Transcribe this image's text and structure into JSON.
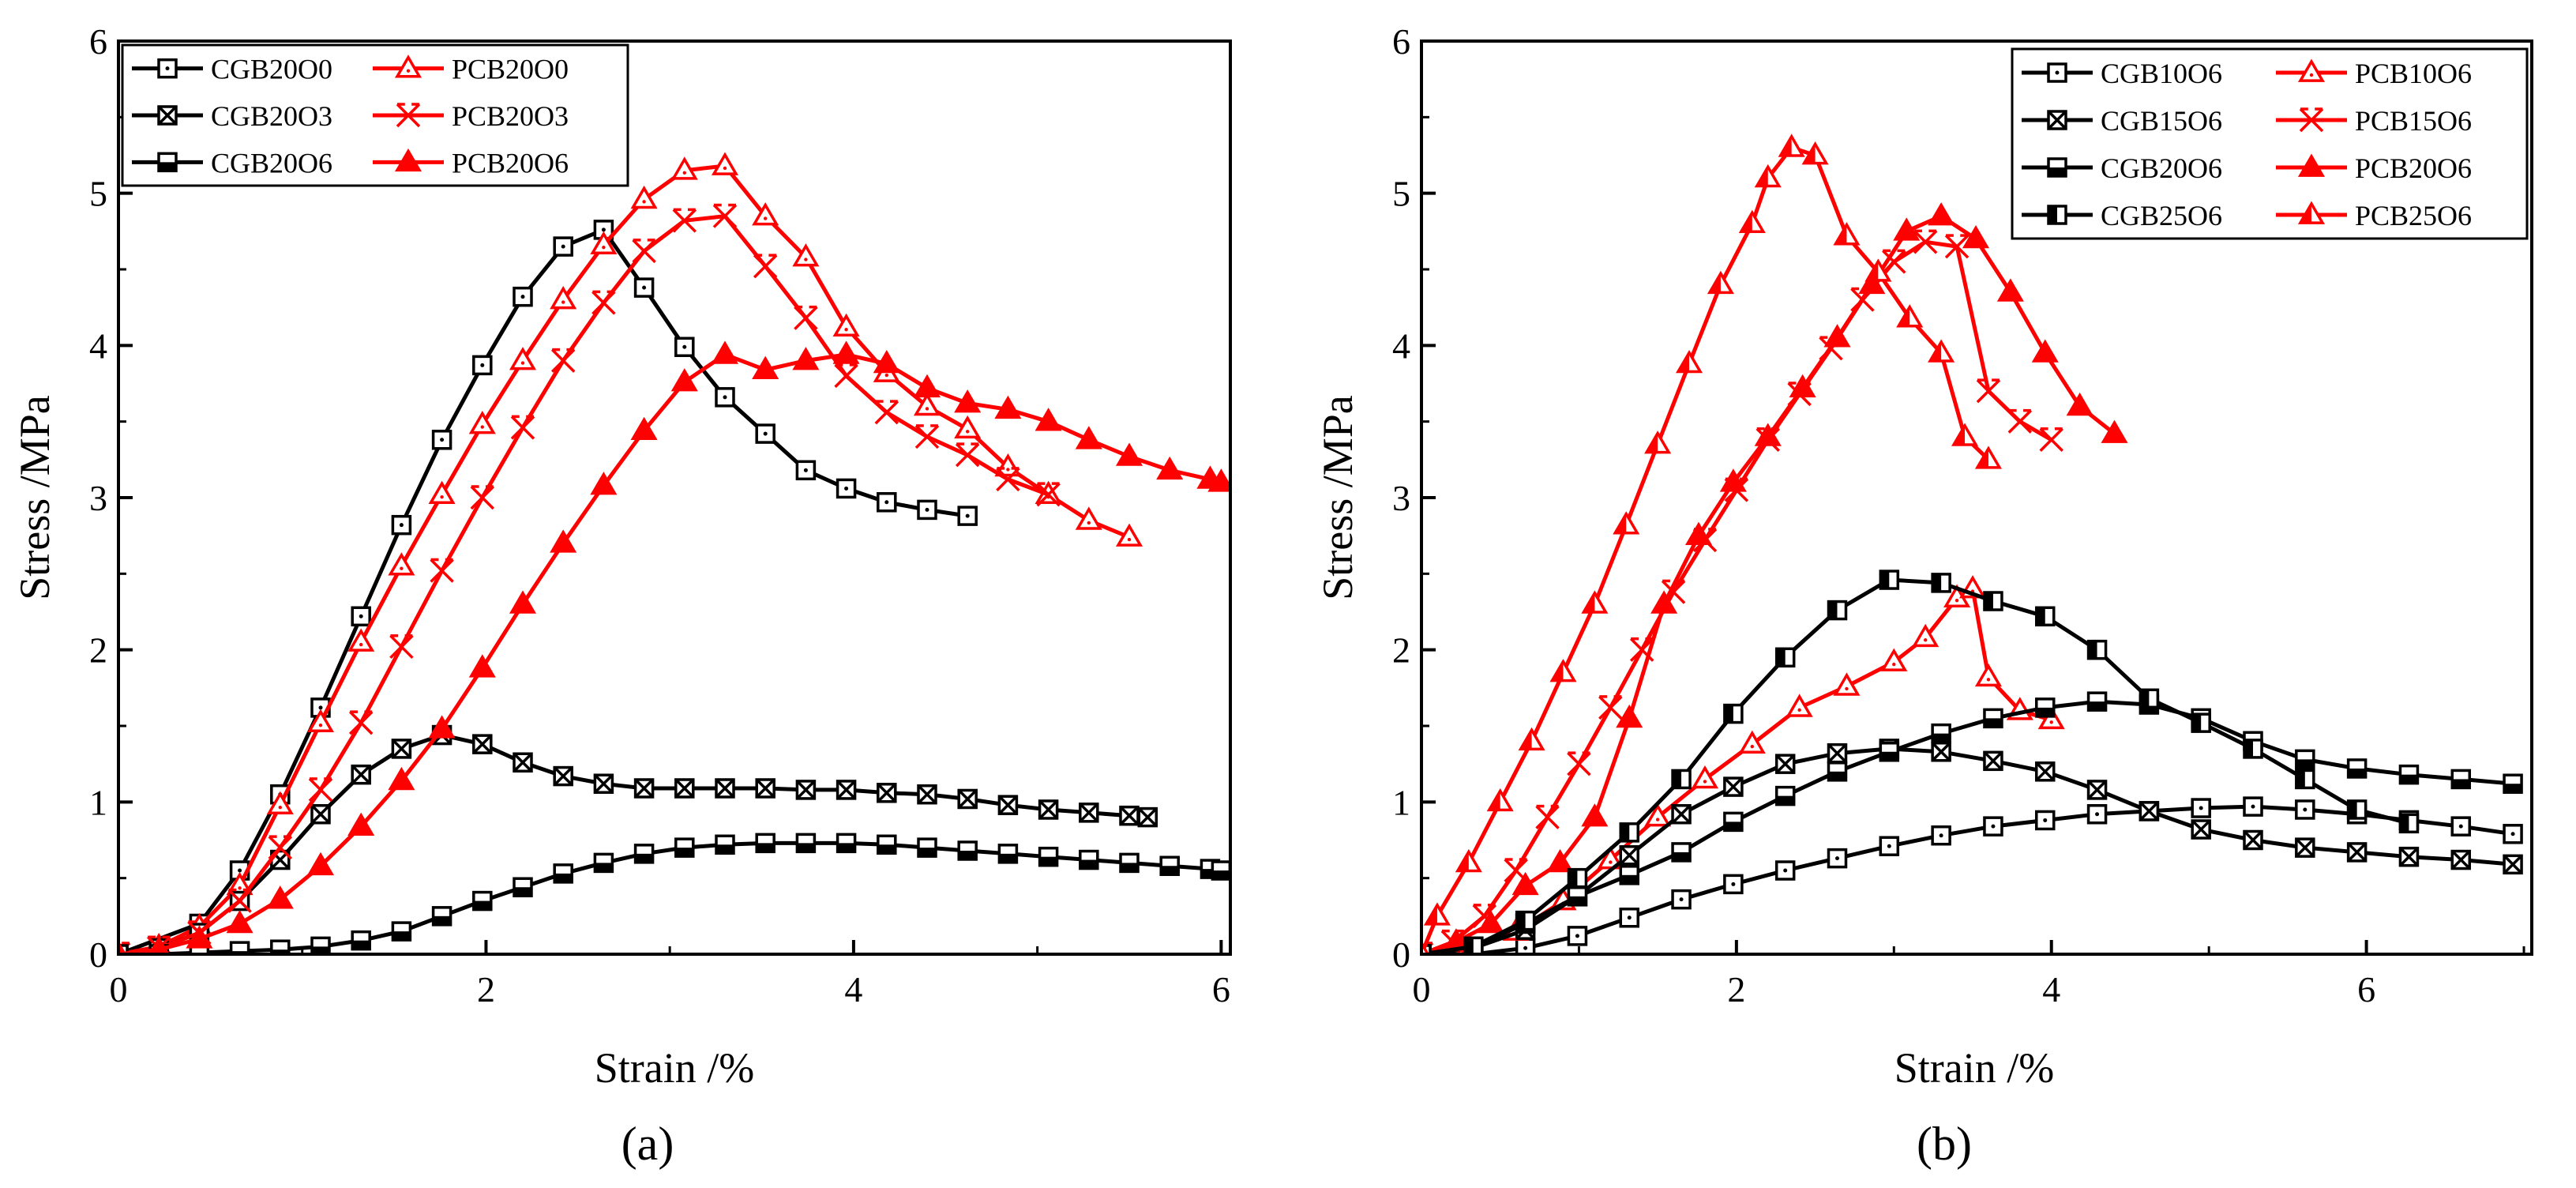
{
  "figure": {
    "panels": [
      "(a)",
      "(b)"
    ]
  },
  "chart_data": [
    {
      "type": "line",
      "panel_label": "(a)",
      "xlabel": "Strain /%",
      "ylabel": "Stress /MPa",
      "xlim": [
        0,
        6.05
      ],
      "ylim": [
        0,
        6
      ],
      "xticks": [
        0,
        2,
        4,
        6
      ],
      "yticks": [
        0,
        1,
        2,
        3,
        4,
        5,
        6
      ],
      "legend_position": "top-left",
      "legend_columns": 2,
      "series": [
        {
          "name": "CGB20O0",
          "color": "#000000",
          "marker": "square-dot",
          "x": [
            0,
            0.44,
            0.66,
            0.88,
            1.1,
            1.32,
            1.54,
            1.76,
            1.98,
            2.2,
            2.42,
            2.64,
            2.86,
            3.08,
            3.3,
            3.52,
            3.74,
            3.96,
            4.18,
            4.4,
            4.62
          ],
          "y": [
            0,
            0.2,
            0.55,
            1.05,
            1.62,
            2.22,
            2.82,
            3.38,
            3.87,
            4.32,
            4.65,
            4.76,
            4.38,
            3.99,
            3.66,
            3.42,
            3.18,
            3.06,
            2.97,
            2.92,
            2.88
          ]
        },
        {
          "name": "PCB20O0",
          "color": "#ff0000",
          "marker": "triangle-open",
          "x": [
            0,
            0.22,
            0.44,
            0.66,
            0.88,
            1.1,
            1.32,
            1.54,
            1.76,
            1.98,
            2.2,
            2.42,
            2.64,
            2.86,
            3.08,
            3.3,
            3.52,
            3.74,
            3.96,
            4.18,
            4.4,
            4.62,
            4.84,
            5.06,
            5.28,
            5.5
          ],
          "y": [
            0,
            0.05,
            0.18,
            0.45,
            0.98,
            1.52,
            2.05,
            2.55,
            3.02,
            3.48,
            3.9,
            4.3,
            4.66,
            4.96,
            5.15,
            5.18,
            4.85,
            4.58,
            4.12,
            3.82,
            3.6,
            3.45,
            3.2,
            3.02,
            2.85,
            2.74
          ]
        },
        {
          "name": "CGB20O3",
          "color": "#000000",
          "marker": "square-x",
          "x": [
            0,
            0.22,
            0.44,
            0.66,
            0.88,
            1.1,
            1.32,
            1.54,
            1.76,
            1.98,
            2.2,
            2.42,
            2.64,
            2.86,
            3.08,
            3.3,
            3.52,
            3.74,
            3.96,
            4.18,
            4.4,
            4.62,
            4.84,
            5.06,
            5.28,
            5.5,
            5.6
          ],
          "y": [
            0,
            0.04,
            0.14,
            0.35,
            0.62,
            0.92,
            1.18,
            1.35,
            1.44,
            1.38,
            1.26,
            1.17,
            1.12,
            1.09,
            1.09,
            1.09,
            1.09,
            1.08,
            1.08,
            1.06,
            1.05,
            1.02,
            0.98,
            0.95,
            0.93,
            0.91,
            0.9
          ]
        },
        {
          "name": "PCB20O3",
          "color": "#ff0000",
          "marker": "x-open",
          "x": [
            0,
            0.22,
            0.44,
            0.66,
            0.88,
            1.1,
            1.32,
            1.54,
            1.76,
            1.98,
            2.2,
            2.42,
            2.64,
            2.86,
            3.08,
            3.3,
            3.52,
            3.74,
            3.96,
            4.18,
            4.4,
            4.62,
            4.84,
            5.06
          ],
          "y": [
            0,
            0.04,
            0.14,
            0.35,
            0.7,
            1.08,
            1.52,
            2.02,
            2.52,
            3.0,
            3.46,
            3.9,
            4.28,
            4.62,
            4.82,
            4.85,
            4.52,
            4.18,
            3.8,
            3.56,
            3.4,
            3.28,
            3.12,
            3.02
          ]
        },
        {
          "name": "CGB20O6",
          "color": "#000000",
          "marker": "square-halffill",
          "x": [
            0,
            0.22,
            0.44,
            0.66,
            0.88,
            1.1,
            1.32,
            1.54,
            1.76,
            1.98,
            2.2,
            2.42,
            2.64,
            2.86,
            3.08,
            3.3,
            3.52,
            3.74,
            3.96,
            4.18,
            4.4,
            4.62,
            4.84,
            5.06,
            5.28,
            5.5,
            5.72,
            5.94,
            6.0
          ],
          "y": [
            0,
            0,
            0.01,
            0.02,
            0.03,
            0.05,
            0.09,
            0.15,
            0.25,
            0.35,
            0.44,
            0.53,
            0.6,
            0.66,
            0.7,
            0.72,
            0.73,
            0.73,
            0.73,
            0.72,
            0.7,
            0.68,
            0.66,
            0.64,
            0.62,
            0.6,
            0.58,
            0.56,
            0.55
          ]
        },
        {
          "name": "PCB20O6",
          "color": "#ff0000",
          "marker": "triangle-filled",
          "x": [
            0,
            0.22,
            0.44,
            0.66,
            0.88,
            1.1,
            1.32,
            1.54,
            1.76,
            1.98,
            2.2,
            2.42,
            2.64,
            2.86,
            3.08,
            3.3,
            3.52,
            3.74,
            3.96,
            4.18,
            4.4,
            4.62,
            4.84,
            5.06,
            5.28,
            5.5,
            5.72,
            5.94,
            6.0
          ],
          "y": [
            0,
            0.03,
            0.1,
            0.2,
            0.36,
            0.58,
            0.84,
            1.14,
            1.48,
            1.88,
            2.3,
            2.7,
            3.08,
            3.44,
            3.76,
            3.94,
            3.84,
            3.9,
            3.94,
            3.88,
            3.72,
            3.62,
            3.58,
            3.5,
            3.38,
            3.27,
            3.18,
            3.12,
            3.1
          ]
        }
      ]
    },
    {
      "type": "line",
      "panel_label": "(b)",
      "xlabel": "Strain /%",
      "ylabel": "Stress /MPa",
      "xlim": [
        0,
        7.05
      ],
      "ylim": [
        0,
        6
      ],
      "xticks": [
        0,
        2,
        4,
        6
      ],
      "yticks": [
        0,
        1,
        2,
        3,
        4,
        5,
        6
      ],
      "legend_position": "top-right",
      "legend_columns": 2,
      "series": [
        {
          "name": "CGB10O6",
          "color": "#000000",
          "marker": "square-dot",
          "x": [
            0,
            0.33,
            0.66,
            0.99,
            1.32,
            1.65,
            1.98,
            2.31,
            2.64,
            2.97,
            3.3,
            3.63,
            3.96,
            4.29,
            4.62,
            4.95,
            5.28,
            5.61,
            5.94,
            6.27,
            6.6,
            6.93
          ],
          "y": [
            0,
            0,
            0.04,
            0.12,
            0.24,
            0.36,
            0.46,
            0.55,
            0.63,
            0.71,
            0.78,
            0.84,
            0.88,
            0.92,
            0.94,
            0.96,
            0.97,
            0.95,
            0.92,
            0.88,
            0.84,
            0.79
          ]
        },
        {
          "name": "PCB10O6",
          "color": "#ff0000",
          "marker": "triangle-open",
          "x": [
            0,
            0.3,
            0.6,
            0.9,
            1.2,
            1.5,
            1.8,
            2.1,
            2.4,
            2.7,
            3.0,
            3.2,
            3.4,
            3.5,
            3.6,
            3.8,
            4.0
          ],
          "y": [
            0,
            0.05,
            0.15,
            0.35,
            0.62,
            0.9,
            1.15,
            1.38,
            1.62,
            1.76,
            1.92,
            2.08,
            2.34,
            2.4,
            1.82,
            1.6,
            1.54
          ]
        },
        {
          "name": "CGB15O6",
          "color": "#000000",
          "marker": "square-x",
          "x": [
            0,
            0.33,
            0.66,
            0.99,
            1.32,
            1.65,
            1.98,
            2.31,
            2.64,
            2.97,
            3.3,
            3.63,
            3.96,
            4.29,
            4.62,
            4.95,
            5.28,
            5.61,
            5.94,
            6.27,
            6.6,
            6.93
          ],
          "y": [
            0,
            0.04,
            0.16,
            0.38,
            0.65,
            0.92,
            1.1,
            1.25,
            1.32,
            1.35,
            1.33,
            1.27,
            1.2,
            1.08,
            0.94,
            0.82,
            0.75,
            0.7,
            0.67,
            0.64,
            0.62,
            0.59
          ]
        },
        {
          "name": "PCB15O6",
          "color": "#ff0000",
          "marker": "x-open",
          "x": [
            0,
            0.2,
            0.4,
            0.6,
            0.8,
            1.0,
            1.2,
            1.4,
            1.6,
            1.8,
            2.0,
            2.2,
            2.4,
            2.6,
            2.8,
            3.0,
            3.2,
            3.4,
            3.6,
            3.8,
            4.0
          ],
          "y": [
            0,
            0.08,
            0.25,
            0.55,
            0.9,
            1.25,
            1.62,
            2.0,
            2.38,
            2.72,
            3.05,
            3.38,
            3.68,
            3.98,
            4.3,
            4.55,
            4.68,
            4.65,
            3.7,
            3.5,
            3.38
          ]
        },
        {
          "name": "CGB20O6",
          "color": "#000000",
          "marker": "square-halffill",
          "x": [
            0,
            0.33,
            0.66,
            0.99,
            1.32,
            1.65,
            1.98,
            2.31,
            2.64,
            2.97,
            3.3,
            3.63,
            3.96,
            4.29,
            4.62,
            4.95,
            5.28,
            5.61,
            5.94,
            6.27,
            6.6,
            6.93
          ],
          "y": [
            0,
            0.05,
            0.2,
            0.38,
            0.52,
            0.67,
            0.87,
            1.04,
            1.2,
            1.33,
            1.45,
            1.55,
            1.62,
            1.66,
            1.64,
            1.55,
            1.4,
            1.28,
            1.22,
            1.18,
            1.15,
            1.12
          ]
        },
        {
          "name": "PCB20O6",
          "color": "#ff0000",
          "marker": "triangle-filled",
          "x": [
            0,
            0.22,
            0.44,
            0.66,
            0.88,
            1.1,
            1.32,
            1.54,
            1.76,
            1.98,
            2.2,
            2.42,
            2.64,
            2.86,
            3.08,
            3.3,
            3.52,
            3.74,
            3.96,
            4.18,
            4.4
          ],
          "y": [
            0,
            0.08,
            0.2,
            0.45,
            0.6,
            0.9,
            1.55,
            2.3,
            2.75,
            3.1,
            3.4,
            3.72,
            4.05,
            4.4,
            4.75,
            4.85,
            4.7,
            4.35,
            3.95,
            3.6,
            3.42
          ]
        },
        {
          "name": "CGB25O6",
          "color": "#000000",
          "marker": "square-halfvert",
          "x": [
            0,
            0.33,
            0.66,
            0.99,
            1.32,
            1.65,
            1.98,
            2.31,
            2.64,
            2.97,
            3.3,
            3.63,
            3.96,
            4.29,
            4.62,
            4.95,
            5.28,
            5.61,
            5.94,
            6.27
          ],
          "y": [
            0,
            0.05,
            0.22,
            0.5,
            0.8,
            1.15,
            1.58,
            1.95,
            2.26,
            2.46,
            2.44,
            2.32,
            2.22,
            2.0,
            1.68,
            1.52,
            1.35,
            1.15,
            0.95,
            0.86
          ]
        },
        {
          "name": "PCB25O6",
          "color": "#ff0000",
          "marker": "triangle-halffill",
          "x": [
            0,
            0.1,
            0.3,
            0.5,
            0.7,
            0.9,
            1.1,
            1.3,
            1.5,
            1.7,
            1.9,
            2.1,
            2.2,
            2.35,
            2.5,
            2.7,
            2.9,
            3.1,
            3.3,
            3.45,
            3.6
          ],
          "y": [
            0,
            0.25,
            0.6,
            1.0,
            1.4,
            1.85,
            2.3,
            2.82,
            3.35,
            3.88,
            4.4,
            4.8,
            5.1,
            5.3,
            5.25,
            4.72,
            4.48,
            4.18,
            3.95,
            3.4,
            3.25
          ]
        }
      ]
    }
  ]
}
